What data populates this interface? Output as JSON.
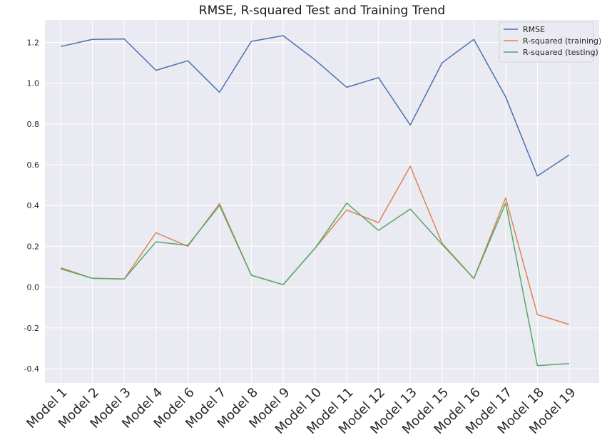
{
  "chart_data": {
    "type": "line",
    "title": "RMSE, R-squared Test and Training Trend",
    "xlabel": "",
    "ylabel": "",
    "categories": [
      "Model 1",
      "Model 2",
      "Model 3",
      "Model 4",
      "Model 6",
      "Model 7",
      "Model 8",
      "Model 9",
      "Model 10",
      "Model 11",
      "Model 12",
      "Model 13",
      "Model 15",
      "Model 16",
      "Model 17",
      "Model 18",
      "Model 19"
    ],
    "ylim": [
      -0.47,
      1.31
    ],
    "yticks": [
      "-0.4",
      "-0.2",
      "0.0",
      "0.2",
      "0.4",
      "0.6",
      "0.8",
      "1.0",
      "1.2"
    ],
    "grid": true,
    "legend_position": "top-right",
    "series": [
      {
        "name": "RMSE",
        "color": "#4c72b0",
        "values": [
          1.18,
          1.215,
          1.217,
          1.063,
          1.11,
          0.955,
          1.205,
          1.233,
          1.115,
          0.98,
          1.027,
          0.795,
          1.1,
          1.215,
          0.933,
          0.545,
          0.648
        ]
      },
      {
        "name": "R-squared (training)",
        "color": "#dd8452",
        "values": [
          0.095,
          0.043,
          0.04,
          0.267,
          0.2,
          0.41,
          0.058,
          0.012,
          0.19,
          0.378,
          0.316,
          0.592,
          0.215,
          0.042,
          0.437,
          -0.135,
          -0.183
        ]
      },
      {
        "name": "R-squared (testing)",
        "color": "#55a868",
        "values": [
          0.09,
          0.043,
          0.04,
          0.222,
          0.205,
          0.4,
          0.058,
          0.012,
          0.19,
          0.412,
          0.278,
          0.383,
          0.21,
          0.042,
          0.412,
          -0.385,
          -0.375
        ]
      }
    ]
  }
}
